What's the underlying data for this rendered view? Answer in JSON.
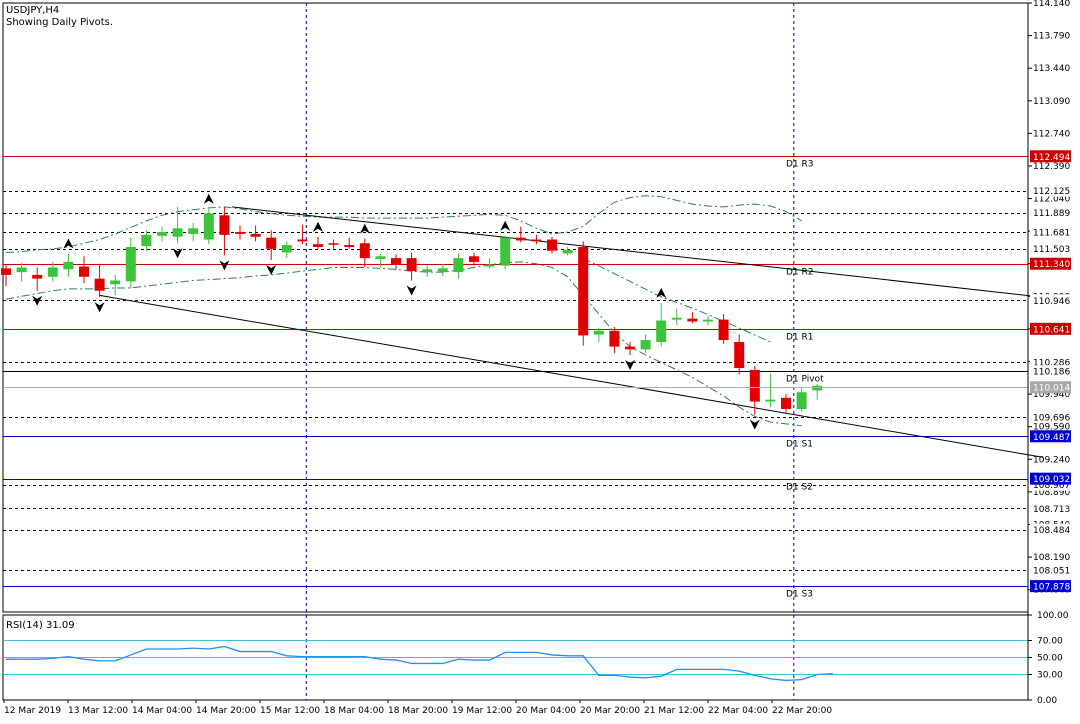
{
  "title": "USDJPY,H4",
  "subtitle": "Showing Daily Pivots.",
  "colors": {
    "bull": "#3cc43c",
    "bear": "#e00000",
    "pivot_red": "#cc0000",
    "pivot_blue": "#0000cc",
    "grid": "#000000",
    "rsi_line": "#1e90ff",
    "rsi_level": "#41c0d8",
    "trend": "#000000",
    "envelope": "#2e7d5b",
    "current_price_bg": "#a9a9a9"
  },
  "chart_data": [
    {
      "type": "candlestick",
      "symbol": "USDJPY",
      "timeframe": "H4",
      "ylim": [
        107.6,
        114.14
      ],
      "y_ticks": [
        "114.140",
        "113.790",
        "113.440",
        "113.090",
        "112.740",
        "112.390",
        "112.040",
        "111.690",
        "111.340",
        "110.990",
        "110.640",
        "110.290",
        "109.940",
        "109.590",
        "109.240",
        "108.890",
        "108.540",
        "108.190",
        "107.840"
      ],
      "x_labels": [
        "12 Mar 2019",
        "13 Mar 12:00",
        "14 Mar 04:00",
        "14 Mar 20:00",
        "15 Mar 12:00",
        "18 Mar 04:00",
        "18 Mar 20:00",
        "19 Mar 12:00",
        "20 Mar 04:00",
        "20 Mar 20:00",
        "21 Mar 12:00",
        "22 Mar 04:00",
        "22 Mar 20:00"
      ],
      "candles": [
        {
          "o": 111.29,
          "h": 111.33,
          "l": 111.1,
          "c": 111.22
        },
        {
          "o": 111.25,
          "h": 111.35,
          "l": 111.15,
          "c": 111.3
        },
        {
          "o": 111.22,
          "h": 111.3,
          "l": 111.05,
          "c": 111.18
        },
        {
          "o": 111.2,
          "h": 111.36,
          "l": 111.15,
          "c": 111.3
        },
        {
          "o": 111.28,
          "h": 111.45,
          "l": 111.2,
          "c": 111.36
        },
        {
          "o": 111.31,
          "h": 111.42,
          "l": 111.13,
          "c": 111.2
        },
        {
          "o": 111.18,
          "h": 111.34,
          "l": 110.98,
          "c": 111.05
        },
        {
          "o": 111.12,
          "h": 111.22,
          "l": 111.0,
          "c": 111.16
        },
        {
          "o": 111.15,
          "h": 111.62,
          "l": 111.08,
          "c": 111.52
        },
        {
          "o": 111.53,
          "h": 111.7,
          "l": 111.48,
          "c": 111.65
        },
        {
          "o": 111.64,
          "h": 111.74,
          "l": 111.58,
          "c": 111.68
        },
        {
          "o": 111.63,
          "h": 111.95,
          "l": 111.56,
          "c": 111.72
        },
        {
          "o": 111.66,
          "h": 111.78,
          "l": 111.58,
          "c": 111.72
        },
        {
          "o": 111.6,
          "h": 111.93,
          "l": 111.55,
          "c": 111.88
        },
        {
          "o": 111.86,
          "h": 111.95,
          "l": 111.43,
          "c": 111.65
        },
        {
          "o": 111.68,
          "h": 111.75,
          "l": 111.6,
          "c": 111.66
        },
        {
          "o": 111.66,
          "h": 111.75,
          "l": 111.58,
          "c": 111.63
        },
        {
          "o": 111.62,
          "h": 111.7,
          "l": 111.38,
          "c": 111.5
        },
        {
          "o": 111.46,
          "h": 111.58,
          "l": 111.4,
          "c": 111.54
        },
        {
          "o": 111.6,
          "h": 111.76,
          "l": 111.55,
          "c": 111.58
        },
        {
          "o": 111.55,
          "h": 111.63,
          "l": 111.5,
          "c": 111.52
        },
        {
          "o": 111.56,
          "h": 111.6,
          "l": 111.5,
          "c": 111.55
        },
        {
          "o": 111.54,
          "h": 111.62,
          "l": 111.5,
          "c": 111.52
        },
        {
          "o": 111.56,
          "h": 111.61,
          "l": 111.3,
          "c": 111.4
        },
        {
          "o": 111.39,
          "h": 111.45,
          "l": 111.3,
          "c": 111.42
        },
        {
          "o": 111.4,
          "h": 111.44,
          "l": 111.28,
          "c": 111.33
        },
        {
          "o": 111.4,
          "h": 111.46,
          "l": 111.16,
          "c": 111.26
        },
        {
          "o": 111.25,
          "h": 111.32,
          "l": 111.2,
          "c": 111.28
        },
        {
          "o": 111.25,
          "h": 111.34,
          "l": 111.21,
          "c": 111.29
        },
        {
          "o": 111.25,
          "h": 111.45,
          "l": 111.18,
          "c": 111.4
        },
        {
          "o": 111.42,
          "h": 111.46,
          "l": 111.32,
          "c": 111.36
        },
        {
          "o": 111.31,
          "h": 111.4,
          "l": 111.29,
          "c": 111.33
        },
        {
          "o": 111.32,
          "h": 111.64,
          "l": 111.28,
          "c": 111.62
        },
        {
          "o": 111.62,
          "h": 111.74,
          "l": 111.57,
          "c": 111.59
        },
        {
          "o": 111.6,
          "h": 111.65,
          "l": 111.55,
          "c": 111.58
        },
        {
          "o": 111.6,
          "h": 111.63,
          "l": 111.45,
          "c": 111.48
        },
        {
          "o": 111.45,
          "h": 111.52,
          "l": 111.43,
          "c": 111.49
        },
        {
          "o": 111.52,
          "h": 111.58,
          "l": 110.46,
          "c": 110.57
        },
        {
          "o": 110.58,
          "h": 110.65,
          "l": 110.5,
          "c": 110.62
        },
        {
          "o": 110.62,
          "h": 110.66,
          "l": 110.38,
          "c": 110.45
        },
        {
          "o": 110.45,
          "h": 110.5,
          "l": 110.36,
          "c": 110.42
        },
        {
          "o": 110.42,
          "h": 110.58,
          "l": 110.38,
          "c": 110.52
        },
        {
          "o": 110.5,
          "h": 110.92,
          "l": 110.45,
          "c": 110.73
        },
        {
          "o": 110.74,
          "h": 110.86,
          "l": 110.68,
          "c": 110.76
        },
        {
          "o": 110.75,
          "h": 110.82,
          "l": 110.7,
          "c": 110.72
        },
        {
          "o": 110.72,
          "h": 110.78,
          "l": 110.68,
          "c": 110.74
        },
        {
          "o": 110.74,
          "h": 110.8,
          "l": 110.48,
          "c": 110.52
        },
        {
          "o": 110.5,
          "h": 110.58,
          "l": 110.15,
          "c": 110.22
        },
        {
          "o": 110.2,
          "h": 110.24,
          "l": 109.72,
          "c": 109.86
        },
        {
          "o": 109.86,
          "h": 110.16,
          "l": 109.8,
          "c": 109.88
        },
        {
          "o": 109.9,
          "h": 109.94,
          "l": 109.74,
          "c": 109.78
        },
        {
          "o": 109.78,
          "h": 110.02,
          "l": 109.75,
          "c": 109.96
        },
        {
          "o": 109.98,
          "h": 110.05,
          "l": 109.88,
          "c": 110.03
        }
      ],
      "dotted_levels": [
        "112.125",
        "111.889",
        "111.681",
        "111.503",
        "110.946",
        "110.286",
        "109.696",
        "108.967",
        "108.713",
        "108.484",
        "108.051"
      ],
      "pivot_levels": [
        {
          "label": "D1 R3",
          "value": "112.494",
          "color": "red"
        },
        {
          "label": "D1 R2",
          "value": "111.340",
          "color": "red"
        },
        {
          "label": "D1 R1",
          "value": "110.641",
          "color": "red"
        },
        {
          "label": "D1 Pivot",
          "value": "110.186",
          "color": "black"
        },
        {
          "label": "D1 S1",
          "value": "109.487",
          "color": "blue"
        },
        {
          "label": "D1 S2",
          "value": "109.032",
          "color": "blue"
        },
        {
          "label": "D1 S3",
          "value": "107.878",
          "color": "blue"
        }
      ],
      "current_price": "110.014",
      "trendlines": [
        {
          "from": {
            "bar": 14.5,
            "price": 111.95
          },
          "to": {
            "bar": 66.5,
            "price": 110.98
          }
        },
        {
          "from": {
            "bar": 6,
            "price": 111.0
          },
          "to": {
            "bar": 66.5,
            "price": 109.26
          }
        }
      ],
      "fractals_up": [
        4,
        13,
        20,
        23,
        32,
        42
      ],
      "fractals_down": [
        2,
        6,
        11,
        14,
        17,
        26,
        40,
        48
      ]
    },
    {
      "type": "line",
      "title": "RSI(14) 31.09",
      "ylim": [
        0,
        100
      ],
      "y_ticks": [
        "100.00",
        "70.00",
        "50.00",
        "30.00",
        "0.00"
      ],
      "levels": [
        70,
        50,
        30
      ],
      "values": [
        48,
        48,
        48,
        49,
        51,
        48,
        46,
        46,
        53,
        60,
        60,
        60,
        61,
        60,
        63,
        57,
        57,
        57,
        52,
        51,
        51,
        51,
        51,
        51,
        48,
        47,
        43,
        43,
        43,
        48,
        47,
        47,
        56,
        56,
        56,
        53,
        52,
        52,
        29,
        29,
        27,
        26,
        28,
        36,
        36,
        36,
        36,
        34,
        29,
        25,
        23,
        24,
        30,
        31
      ]
    }
  ]
}
